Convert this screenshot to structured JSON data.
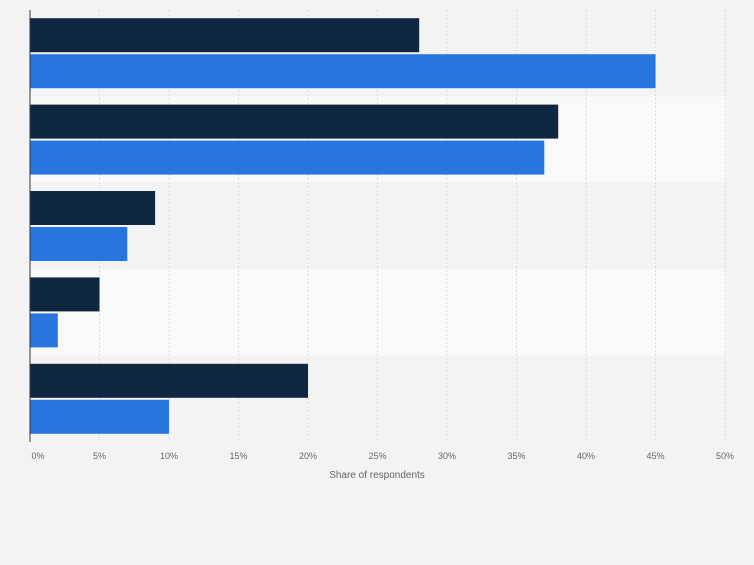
{
  "chart_data": {
    "type": "bar",
    "orientation": "horizontal",
    "title": "",
    "xlabel": "Share of respondents",
    "ylabel": "",
    "xlim": [
      0,
      50
    ],
    "x_ticks": [
      "0%",
      "5%",
      "10%",
      "15%",
      "20%",
      "25%",
      "30%",
      "35%",
      "40%",
      "45%",
      "50%"
    ],
    "categories": [
      "",
      "",
      "",
      "",
      ""
    ],
    "series": [
      {
        "name": "",
        "color": "#0f2741",
        "values": [
          28,
          38,
          9,
          5,
          20
        ]
      },
      {
        "name": "",
        "color": "#2876dd",
        "values": [
          45,
          37,
          7,
          2,
          10
        ]
      }
    ],
    "grid": true,
    "band_colors": [
      "#f3f3f3",
      "#f9f9f9"
    ],
    "gridline_color": "#dedede"
  }
}
